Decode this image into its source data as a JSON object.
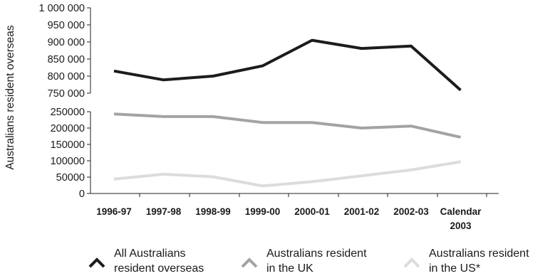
{
  "chart_data": {
    "type": "line",
    "ylabel": "Australians resident overseas",
    "categories": [
      "1996-97",
      "1997-98",
      "1998-99",
      "1999-00",
      "2000-01",
      "2001-02",
      "2002-03",
      "Calendar 2003"
    ],
    "axis_break": true,
    "upper_panel": {
      "ylim": [
        750000,
        1000000
      ],
      "yticks": [
        "1 000 000",
        "950 000",
        "900 000",
        "850 000",
        "800 000",
        "750 000"
      ],
      "series": [
        {
          "name": "All Australians resident overseas",
          "color": "#1c1c1c",
          "values": [
            815000,
            789000,
            800000,
            830000,
            905000,
            881000,
            888000,
            759000
          ]
        }
      ]
    },
    "lower_panel": {
      "ylim": [
        0,
        250000
      ],
      "yticks": [
        "250000",
        "200000",
        "150000",
        "100000",
        "50000",
        "0"
      ],
      "series": [
        {
          "name": "Australians resident in the UK",
          "color": "#a3a3a3",
          "values": [
            243000,
            235000,
            235000,
            217000,
            217000,
            200000,
            206000,
            172000
          ]
        },
        {
          "name": "Australians resident in the US*",
          "color": "#dcdcdc",
          "values": [
            44000,
            59000,
            51000,
            23000,
            36000,
            54000,
            72000,
            97000
          ]
        }
      ]
    },
    "legend": [
      {
        "line1": "All Australians",
        "line2": "resident overseas",
        "color": "#1c1c1c"
      },
      {
        "line1": "Australians resident",
        "line2": "in the UK",
        "color": "#a3a3a3"
      },
      {
        "line1": "Australians resident",
        "line2": "in the US*",
        "color": "#dcdcdc"
      }
    ],
    "legend_position": "bottom",
    "grid": false
  }
}
